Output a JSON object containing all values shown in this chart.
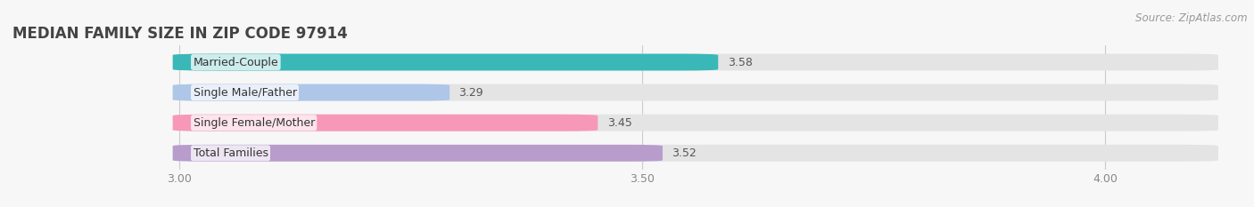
{
  "title": "MEDIAN FAMILY SIZE IN ZIP CODE 97914",
  "source": "Source: ZipAtlas.com",
  "categories": [
    "Married-Couple",
    "Single Male/Father",
    "Single Female/Mother",
    "Total Families"
  ],
  "values": [
    3.58,
    3.29,
    3.45,
    3.52
  ],
  "bar_colors": [
    "#3ab8b8",
    "#aec6e8",
    "#f898b8",
    "#b89ccc"
  ],
  "xlim_min": 2.82,
  "xlim_max": 4.12,
  "xticks": [
    3.0,
    3.5,
    4.0
  ],
  "xtick_labels": [
    "3.00",
    "3.50",
    "4.00"
  ],
  "background_color": "#f7f7f7",
  "bar_bg_color": "#e4e4e4",
  "title_fontsize": 12,
  "label_fontsize": 9,
  "value_fontsize": 9,
  "source_fontsize": 8.5
}
